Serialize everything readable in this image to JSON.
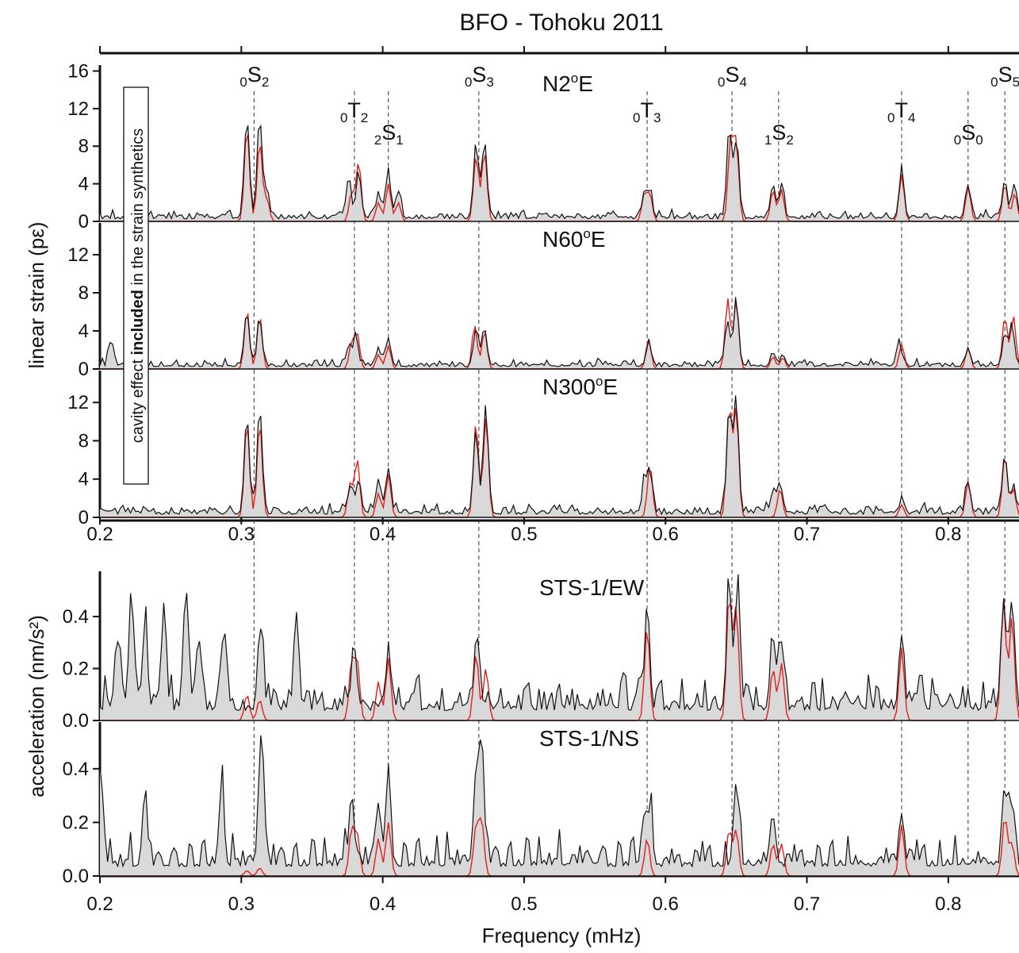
{
  "colors": {
    "observed_line": "#111111",
    "observed_fill": "#d9d9d9",
    "synthetic": "#e0201b",
    "mode_lines": "#333333"
  },
  "chart_data": {
    "type": "line",
    "title": "BFO - Tohoku 2011",
    "xlabel": "Frequency (mHz)",
    "xlim": [
      0.2,
      0.85
    ],
    "xticks": [
      "0.2",
      "0.3",
      "0.4",
      "0.5",
      "0.6",
      "0.7",
      "0.8"
    ],
    "strain_ylabel": "linear strain (pε)",
    "accel_ylabel": "acceleration (nm/s²)",
    "annotation_box": {
      "prefix": "cavity effect ",
      "bold": "included",
      "suffix": " in the strain synthetics"
    },
    "modes": [
      {
        "n": "0",
        "type": "S",
        "l": "2",
        "freq": 0.309,
        "label_row": 0
      },
      {
        "n": "0",
        "type": "T",
        "l": "2",
        "freq": 0.38,
        "label_row": 1
      },
      {
        "n": "2",
        "type": "S",
        "l": "1",
        "freq": 0.404,
        "label_row": 2
      },
      {
        "n": "0",
        "type": "S",
        "l": "3",
        "freq": 0.468,
        "label_row": 0
      },
      {
        "n": "0",
        "type": "T",
        "l": "3",
        "freq": 0.587,
        "label_row": 1
      },
      {
        "n": "0",
        "type": "S",
        "l": "4",
        "freq": 0.647,
        "label_row": 0
      },
      {
        "n": "1",
        "type": "S",
        "l": "2",
        "freq": 0.68,
        "label_row": 2
      },
      {
        "n": "0",
        "type": "T",
        "l": "4",
        "freq": 0.767,
        "label_row": 1
      },
      {
        "n": "0",
        "type": "S",
        "l": "0",
        "freq": 0.814,
        "label_row": 2
      },
      {
        "n": "0",
        "type": "S",
        "l": "5",
        "freq": 0.84,
        "label_row": 0
      }
    ],
    "panels": [
      {
        "name": "N2ºE",
        "label_main": "N2",
        "label_sup": "o",
        "label_tail": "E",
        "kind": "strain",
        "ylim": [
          0,
          16.8
        ],
        "yticks": [
          "0",
          "4",
          "8",
          "12",
          "16"
        ],
        "ytick_values": [
          0,
          4,
          8,
          12,
          16
        ],
        "noise": 0.9,
        "seed": 11,
        "obs_peaks": [
          [
            0.304,
            11
          ],
          [
            0.313,
            11
          ],
          [
            0.318,
            3
          ],
          [
            0.376,
            4.5
          ],
          [
            0.383,
            5
          ],
          [
            0.397,
            3
          ],
          [
            0.404,
            5
          ],
          [
            0.411,
            3
          ],
          [
            0.466,
            8
          ],
          [
            0.472,
            8.5
          ],
          [
            0.585,
            3
          ],
          [
            0.589,
            3
          ],
          [
            0.645,
            9.2
          ],
          [
            0.65,
            9
          ],
          [
            0.676,
            3.8
          ],
          [
            0.682,
            3.6
          ],
          [
            0.767,
            5
          ],
          [
            0.814,
            4
          ],
          [
            0.84,
            4.5
          ],
          [
            0.847,
            3.5
          ]
        ],
        "syn_peaks": [
          [
            0.304,
            10
          ],
          [
            0.313,
            8.5
          ],
          [
            0.318,
            2.4
          ],
          [
            0.378,
            3
          ],
          [
            0.383,
            6.3
          ],
          [
            0.397,
            2
          ],
          [
            0.404,
            4
          ],
          [
            0.411,
            2
          ],
          [
            0.466,
            7
          ],
          [
            0.472,
            7.5
          ],
          [
            0.585,
            2.8
          ],
          [
            0.589,
            2.8
          ],
          [
            0.646,
            8.5
          ],
          [
            0.65,
            8.2
          ],
          [
            0.676,
            3.3
          ],
          [
            0.682,
            3.4
          ],
          [
            0.767,
            5
          ],
          [
            0.814,
            3.7
          ],
          [
            0.84,
            4
          ],
          [
            0.847,
            3
          ]
        ]
      },
      {
        "name": "N60ºE",
        "label_main": "N60",
        "label_sup": "o",
        "label_tail": "E",
        "kind": "strain",
        "ylim": [
          0,
          15.5
        ],
        "yticks": [
          "0",
          "4",
          "8",
          "12"
        ],
        "ytick_values": [
          0,
          4,
          8,
          12
        ],
        "noise": 0.8,
        "seed": 23,
        "obs_peaks": [
          [
            0.208,
            3
          ],
          [
            0.304,
            5.5
          ],
          [
            0.313,
            5.5
          ],
          [
            0.376,
            2.3
          ],
          [
            0.381,
            3.2
          ],
          [
            0.397,
            2
          ],
          [
            0.404,
            3
          ],
          [
            0.466,
            4.5
          ],
          [
            0.472,
            4
          ],
          [
            0.588,
            2.5
          ],
          [
            0.644,
            5
          ],
          [
            0.65,
            7.5
          ],
          [
            0.676,
            1.5
          ],
          [
            0.683,
            1.3
          ],
          [
            0.765,
            2.5
          ],
          [
            0.814,
            2
          ],
          [
            0.84,
            3.5
          ],
          [
            0.845,
            4.5
          ]
        ],
        "syn_peaks": [
          [
            0.304,
            6.2
          ],
          [
            0.313,
            5.6
          ],
          [
            0.378,
            2.6
          ],
          [
            0.382,
            3.6
          ],
          [
            0.397,
            1.5
          ],
          [
            0.404,
            2.4
          ],
          [
            0.465,
            4.6
          ],
          [
            0.472,
            4
          ],
          [
            0.588,
            3.2
          ],
          [
            0.644,
            7.4
          ],
          [
            0.65,
            7.2
          ],
          [
            0.676,
            1.3
          ],
          [
            0.683,
            1.2
          ],
          [
            0.767,
            2.6
          ],
          [
            0.814,
            2.2
          ],
          [
            0.84,
            5.5
          ],
          [
            0.846,
            5.6
          ]
        ]
      },
      {
        "name": "N300ºE",
        "label_main": "N300",
        "label_sup": "o",
        "label_tail": "E",
        "kind": "strain",
        "ylim": [
          0,
          15.5
        ],
        "yticks": [
          "0",
          "4",
          "8",
          "12"
        ],
        "ytick_values": [
          0,
          4,
          8,
          12
        ],
        "noise": 1.1,
        "seed": 37,
        "obs_peaks": [
          [
            0.304,
            10.5
          ],
          [
            0.313,
            11.3
          ],
          [
            0.377,
            3
          ],
          [
            0.383,
            4
          ],
          [
            0.397,
            4
          ],
          [
            0.404,
            5
          ],
          [
            0.466,
            9
          ],
          [
            0.473,
            11.5
          ],
          [
            0.585,
            3
          ],
          [
            0.589,
            4.5
          ],
          [
            0.645,
            11.5
          ],
          [
            0.65,
            12.5
          ],
          [
            0.676,
            2.5
          ],
          [
            0.681,
            3.5
          ],
          [
            0.767,
            1.5
          ],
          [
            0.814,
            3.5
          ],
          [
            0.84,
            6
          ],
          [
            0.846,
            3
          ]
        ],
        "syn_peaks": [
          [
            0.304,
            10
          ],
          [
            0.313,
            10
          ],
          [
            0.377,
            3.5
          ],
          [
            0.382,
            6
          ],
          [
            0.397,
            2.5
          ],
          [
            0.404,
            4.5
          ],
          [
            0.466,
            10
          ],
          [
            0.473,
            10.5
          ],
          [
            0.589,
            5.5
          ],
          [
            0.645,
            11.5
          ],
          [
            0.65,
            11.3
          ],
          [
            0.681,
            3
          ],
          [
            0.767,
            1.3
          ],
          [
            0.814,
            3.8
          ],
          [
            0.84,
            6.5
          ],
          [
            0.846,
            3
          ]
        ]
      },
      {
        "name": "STS-1/EW",
        "label_main": "STS-1/EW",
        "label_sup": "",
        "label_tail": "",
        "kind": "accel",
        "ylim": [
          0,
          0.58
        ],
        "yticks": [
          "0.0",
          "0.2",
          "0.4"
        ],
        "ytick_values": [
          0,
          0.2,
          0.4
        ],
        "noise": 0.13,
        "seed": 51,
        "obs_peaks": [
          [
            0.213,
            0.3
          ],
          [
            0.222,
            0.4
          ],
          [
            0.232,
            0.34
          ],
          [
            0.245,
            0.38
          ],
          [
            0.261,
            0.46
          ],
          [
            0.27,
            0.3
          ],
          [
            0.288,
            0.3
          ],
          [
            0.314,
            0.32
          ],
          [
            0.339,
            0.36
          ],
          [
            0.38,
            0.26
          ],
          [
            0.404,
            0.25
          ],
          [
            0.467,
            0.28
          ],
          [
            0.587,
            0.42
          ],
          [
            0.645,
            0.5
          ],
          [
            0.651,
            0.54
          ],
          [
            0.676,
            0.28
          ],
          [
            0.682,
            0.3
          ],
          [
            0.767,
            0.3
          ],
          [
            0.839,
            0.48
          ],
          [
            0.845,
            0.45
          ]
        ],
        "syn_peaks": [
          [
            0.304,
            0.1
          ],
          [
            0.313,
            0.08
          ],
          [
            0.378,
            0.22
          ],
          [
            0.382,
            0.22
          ],
          [
            0.397,
            0.15
          ],
          [
            0.404,
            0.24
          ],
          [
            0.466,
            0.26
          ],
          [
            0.473,
            0.2
          ],
          [
            0.587,
            0.36
          ],
          [
            0.645,
            0.48
          ],
          [
            0.65,
            0.43
          ],
          [
            0.676,
            0.2
          ],
          [
            0.682,
            0.22
          ],
          [
            0.767,
            0.28
          ],
          [
            0.839,
            0.47
          ],
          [
            0.845,
            0.4
          ]
        ]
      },
      {
        "name": "STS-1/NS",
        "label_main": "STS-1/NS",
        "label_sup": "",
        "label_tail": "",
        "kind": "accel",
        "ylim": [
          0,
          0.58
        ],
        "yticks": [
          "0.0",
          "0.2",
          "0.4"
        ],
        "ytick_values": [
          0,
          0.2,
          0.4
        ],
        "noise": 0.12,
        "seed": 67,
        "obs_peaks": [
          [
            0.201,
            0.34
          ],
          [
            0.232,
            0.26
          ],
          [
            0.286,
            0.3
          ],
          [
            0.314,
            0.55
          ],
          [
            0.378,
            0.3
          ],
          [
            0.397,
            0.25
          ],
          [
            0.404,
            0.32
          ],
          [
            0.466,
            0.35
          ],
          [
            0.47,
            0.44
          ],
          [
            0.585,
            0.18
          ],
          [
            0.589,
            0.2
          ],
          [
            0.65,
            0.34
          ],
          [
            0.676,
            0.2
          ],
          [
            0.767,
            0.2
          ],
          [
            0.84,
            0.3
          ],
          [
            0.845,
            0.22
          ]
        ],
        "syn_peaks": [
          [
            0.304,
            0.02
          ],
          [
            0.313,
            0.03
          ],
          [
            0.378,
            0.17
          ],
          [
            0.382,
            0.15
          ],
          [
            0.397,
            0.14
          ],
          [
            0.404,
            0.2
          ],
          [
            0.466,
            0.18
          ],
          [
            0.47,
            0.2
          ],
          [
            0.587,
            0.14
          ],
          [
            0.645,
            0.17
          ],
          [
            0.65,
            0.17
          ],
          [
            0.676,
            0.12
          ],
          [
            0.682,
            0.12
          ],
          [
            0.767,
            0.19
          ],
          [
            0.84,
            0.22
          ],
          [
            0.845,
            0.12
          ]
        ]
      }
    ]
  }
}
